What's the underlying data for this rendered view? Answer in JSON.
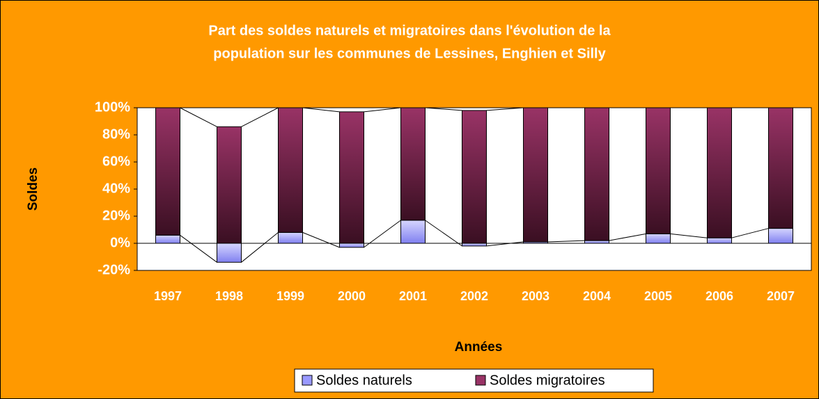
{
  "chart_data": {
    "type": "stacked_bar_100",
    "title": [
      "Part des soldes naturels et migratoires dans l'évolution de la",
      "population sur les communes de Lessines, Enghien et Silly"
    ],
    "xlabel": "Années",
    "ylabel": "Soldes",
    "categories": [
      "1997",
      "1998",
      "1999",
      "2000",
      "2001",
      "2002",
      "2003",
      "2004",
      "2005",
      "2006",
      "2007"
    ],
    "series": [
      {
        "name": "Soldes naturels",
        "color": "#9999ff",
        "values": [
          6,
          -14,
          8,
          -3,
          17,
          -2,
          1,
          2,
          7,
          4,
          11
        ]
      },
      {
        "name": "Soldes migratoires",
        "color": "#993366",
        "values": [
          94,
          86,
          92,
          97,
          83,
          98,
          99,
          98,
          93,
          96,
          89
        ]
      }
    ],
    "ylim": [
      -20,
      100
    ],
    "yticks": [
      {
        "value": -20,
        "label": "-20%"
      },
      {
        "value": 0,
        "label": "0%"
      },
      {
        "value": 20,
        "label": "20%"
      },
      {
        "value": 40,
        "label": "40%"
      },
      {
        "value": 60,
        "label": "60%"
      },
      {
        "value": 80,
        "label": "80%"
      },
      {
        "value": 100,
        "label": "100%"
      }
    ],
    "legend": "bottom",
    "grid": false,
    "series_lines": true
  }
}
